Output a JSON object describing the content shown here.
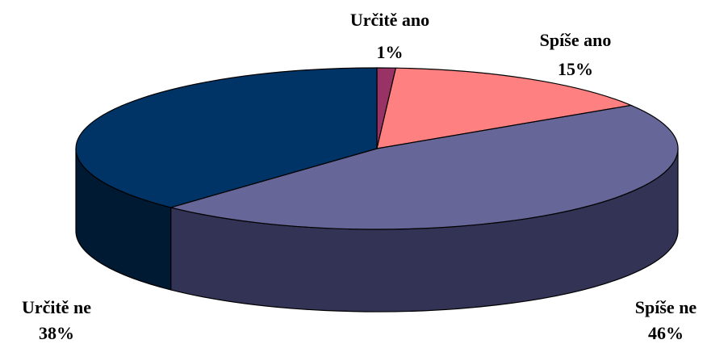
{
  "chart_data": {
    "type": "pie",
    "categories": [
      "Určitě ano",
      "Spíše ano",
      "Spíše ne",
      "Určitě ne"
    ],
    "values": [
      1,
      15,
      46,
      38
    ],
    "value_labels": [
      "1%",
      "15%",
      "46%",
      "38%"
    ],
    "colors": [
      "#993366",
      "#ff8080",
      "#666699",
      "#003366"
    ],
    "side_colors": [
      "#4d1a33",
      "#804040",
      "#333355",
      "#001a33"
    ]
  }
}
